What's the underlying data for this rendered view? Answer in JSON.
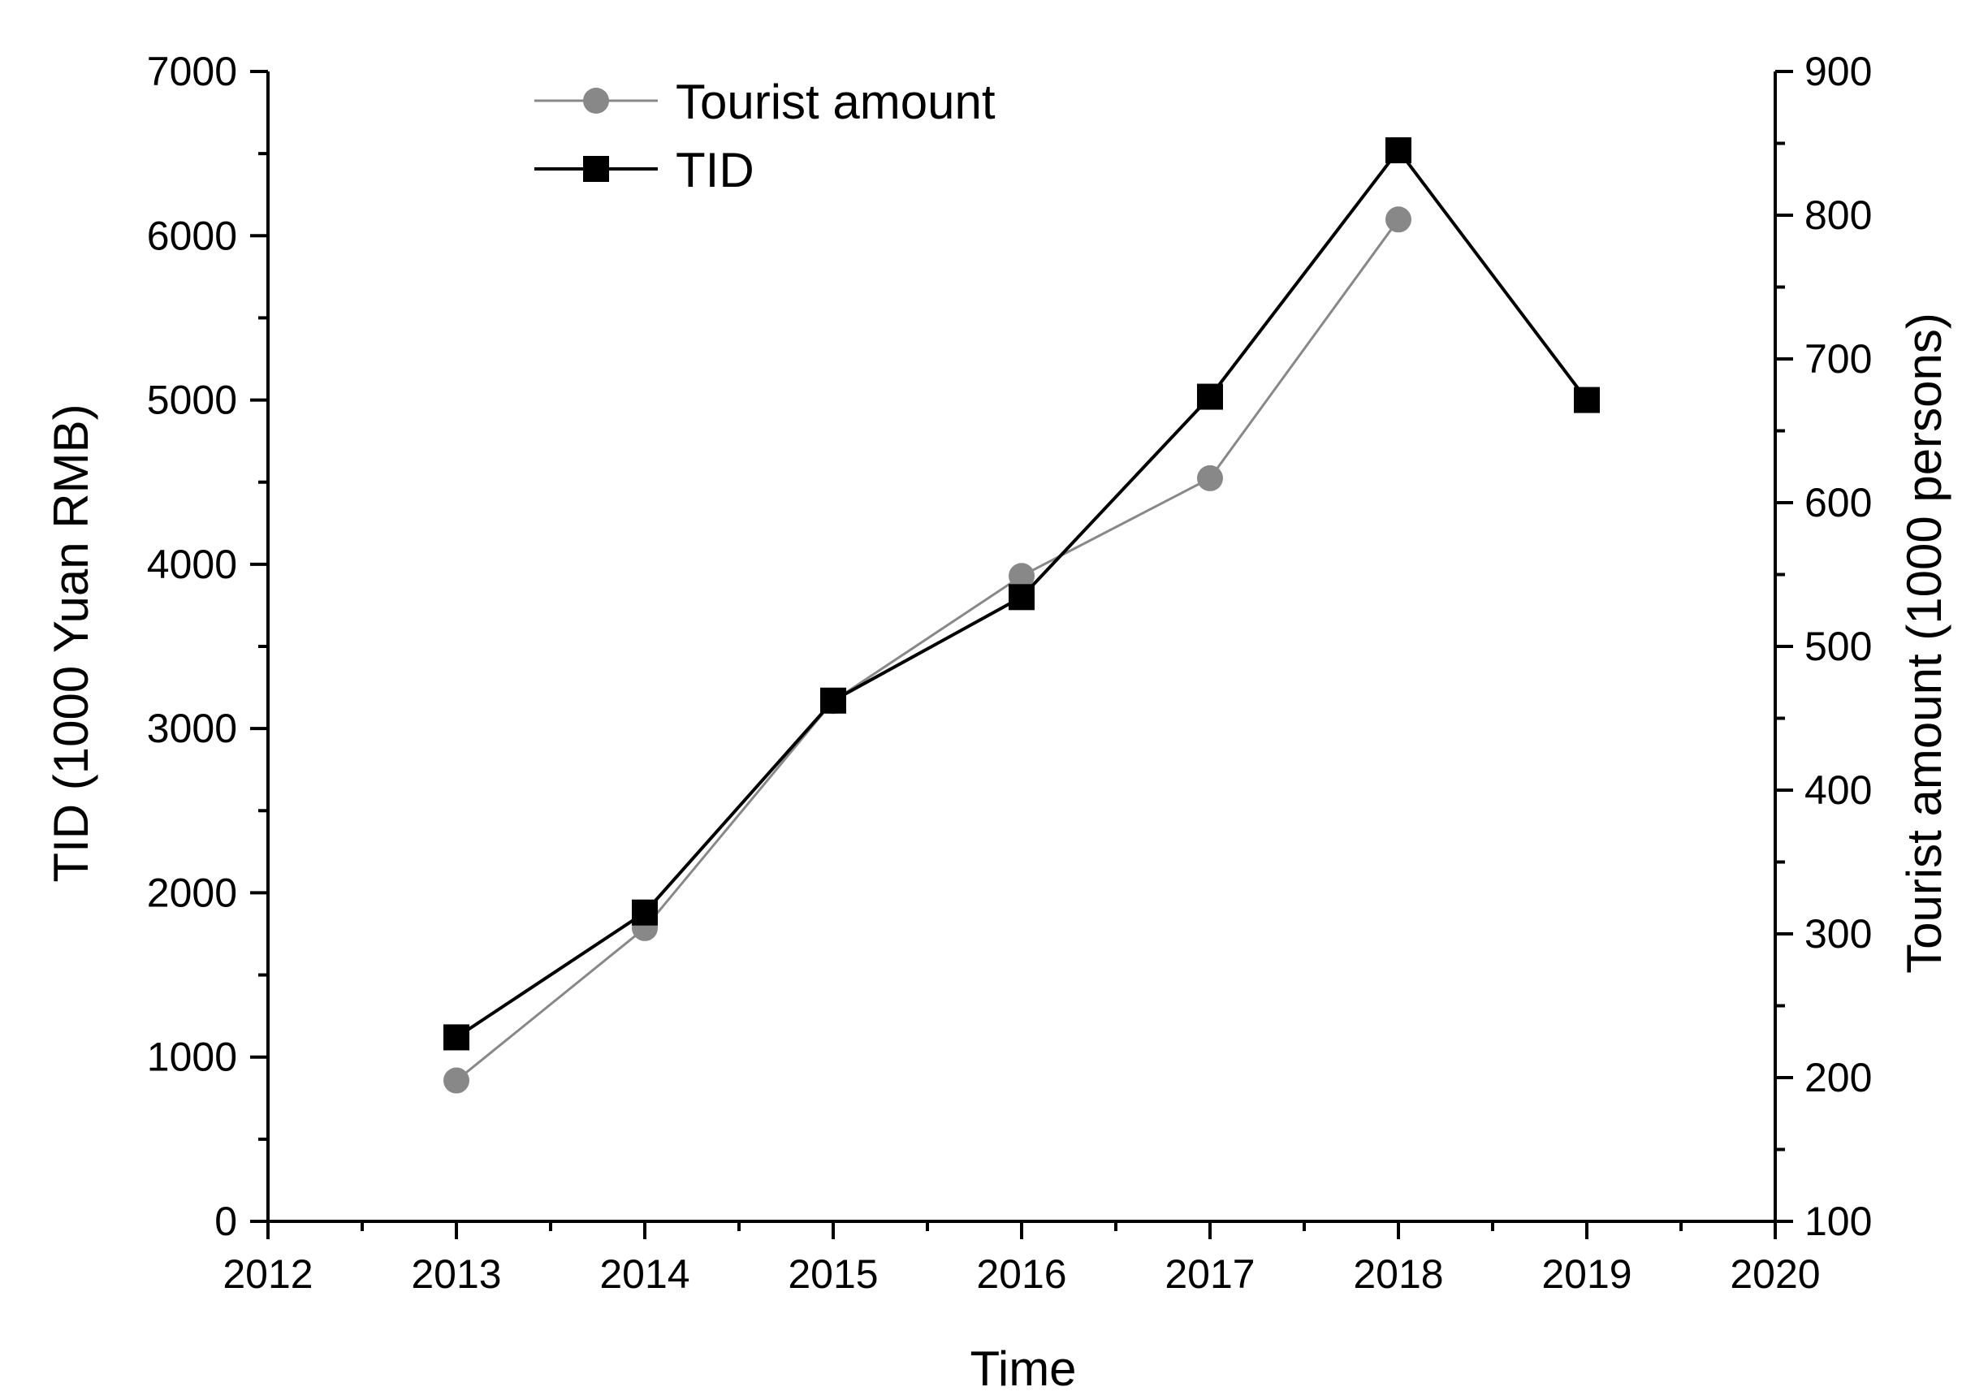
{
  "chart_data": {
    "type": "line",
    "xlabel": "Time",
    "ylabel_left": "TID (1000 Yuan RMB)",
    "ylabel_right": "Tourist amount (1000 persons)",
    "xlim": [
      2012,
      2020
    ],
    "xticks": [
      2012,
      2013,
      2014,
      2015,
      2016,
      2017,
      2018,
      2019,
      2020
    ],
    "ylim_left": [
      0,
      7000
    ],
    "yticks_left": [
      0,
      1000,
      2000,
      3000,
      4000,
      5000,
      6000,
      7000
    ],
    "ylim_right": [
      100,
      900
    ],
    "yticks_right": [
      100,
      200,
      300,
      400,
      500,
      600,
      700,
      800,
      900
    ],
    "legend_position": "top-left",
    "grid": false,
    "series": [
      {
        "name": "Tourist amount",
        "axis": "right",
        "marker": "circle",
        "color": "#888888",
        "x": [
          2013,
          2014,
          2015,
          2016,
          2017,
          2018
        ],
        "values": [
          198,
          304,
          462,
          549,
          617,
          797
        ]
      },
      {
        "name": "TID",
        "axis": "left",
        "marker": "square",
        "color": "#000000",
        "x": [
          2013,
          2014,
          2015,
          2016,
          2017,
          2018,
          2019
        ],
        "values": [
          1120,
          1880,
          3170,
          3800,
          5020,
          6520,
          5000
        ]
      }
    ]
  }
}
